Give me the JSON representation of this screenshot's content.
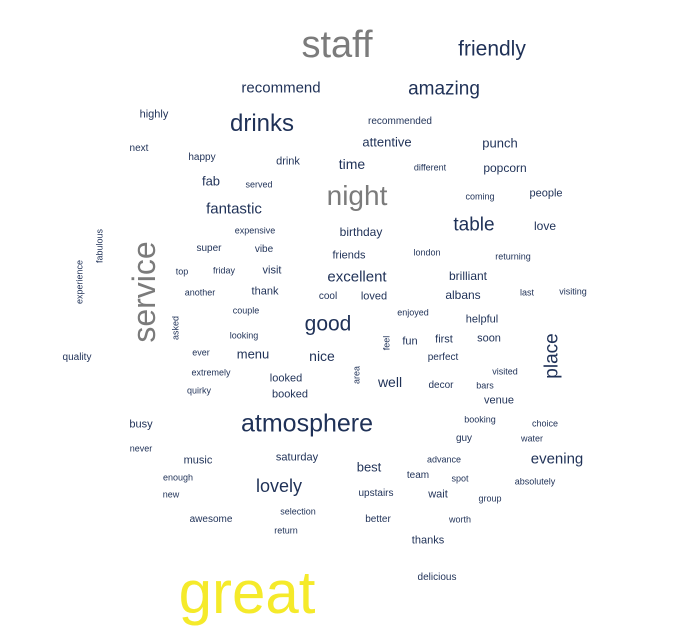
{
  "colors": {
    "navy": "#1f3157",
    "gray": "#7b7b7b",
    "yellow": "#f5ea2a",
    "background": "#ffffff"
  },
  "words": [
    {
      "text": "great",
      "color": "yellow"
    },
    {
      "text": "staff",
      "color": "gray"
    },
    {
      "text": "service",
      "color": "gray"
    },
    {
      "text": "night",
      "color": "gray"
    },
    {
      "text": "friendly",
      "color": "navy"
    },
    {
      "text": "drinks",
      "color": "navy"
    },
    {
      "text": "atmosphere",
      "color": "navy"
    },
    {
      "text": "amazing",
      "color": "navy"
    },
    {
      "text": "recommend",
      "color": "navy"
    },
    {
      "text": "good",
      "color": "navy"
    },
    {
      "text": "table",
      "color": "navy"
    },
    {
      "text": "place",
      "color": "navy"
    },
    {
      "text": "lovely",
      "color": "navy"
    },
    {
      "text": "evening",
      "color": "navy"
    },
    {
      "text": "excellent",
      "color": "navy"
    },
    {
      "text": "fantastic",
      "color": "navy"
    },
    {
      "text": "attentive",
      "color": "navy"
    },
    {
      "text": "punch",
      "color": "navy"
    },
    {
      "text": "popcorn",
      "color": "navy"
    },
    {
      "text": "time",
      "color": "navy"
    },
    {
      "text": "fab",
      "color": "navy"
    },
    {
      "text": "nice",
      "color": "navy"
    },
    {
      "text": "menu",
      "color": "navy"
    },
    {
      "text": "well",
      "color": "navy"
    },
    {
      "text": "best",
      "color": "navy"
    },
    {
      "text": "birthday",
      "color": "navy"
    },
    {
      "text": "brilliant",
      "color": "navy"
    },
    {
      "text": "albans",
      "color": "navy"
    },
    {
      "text": "love",
      "color": "navy"
    },
    {
      "text": "people",
      "color": "navy"
    },
    {
      "text": "highly",
      "color": "navy"
    },
    {
      "text": "recommended",
      "color": "navy"
    },
    {
      "text": "drink",
      "color": "navy"
    },
    {
      "text": "happy",
      "color": "navy"
    },
    {
      "text": "next",
      "color": "navy"
    },
    {
      "text": "served",
      "color": "navy"
    },
    {
      "text": "different",
      "color": "navy"
    },
    {
      "text": "coming",
      "color": "navy"
    },
    {
      "text": "expensive",
      "color": "navy"
    },
    {
      "text": "fabulous",
      "color": "navy"
    },
    {
      "text": "super",
      "color": "navy"
    },
    {
      "text": "vibe",
      "color": "navy"
    },
    {
      "text": "friends",
      "color": "navy"
    },
    {
      "text": "london",
      "color": "navy"
    },
    {
      "text": "returning",
      "color": "navy"
    },
    {
      "text": "experience",
      "color": "navy"
    },
    {
      "text": "top",
      "color": "navy"
    },
    {
      "text": "friday",
      "color": "navy"
    },
    {
      "text": "visit",
      "color": "navy"
    },
    {
      "text": "another",
      "color": "navy"
    },
    {
      "text": "thank",
      "color": "navy"
    },
    {
      "text": "cool",
      "color": "navy"
    },
    {
      "text": "loved",
      "color": "navy"
    },
    {
      "text": "last",
      "color": "navy"
    },
    {
      "text": "visiting",
      "color": "navy"
    },
    {
      "text": "couple",
      "color": "navy"
    },
    {
      "text": "enjoyed",
      "color": "navy"
    },
    {
      "text": "helpful",
      "color": "navy"
    },
    {
      "text": "asked",
      "color": "navy"
    },
    {
      "text": "looking",
      "color": "navy"
    },
    {
      "text": "feel",
      "color": "navy"
    },
    {
      "text": "fun",
      "color": "navy"
    },
    {
      "text": "first",
      "color": "navy"
    },
    {
      "text": "soon",
      "color": "navy"
    },
    {
      "text": "quality",
      "color": "navy"
    },
    {
      "text": "ever",
      "color": "navy"
    },
    {
      "text": "perfect",
      "color": "navy"
    },
    {
      "text": "extremely",
      "color": "navy"
    },
    {
      "text": "looked",
      "color": "navy"
    },
    {
      "text": "area",
      "color": "navy"
    },
    {
      "text": "visited",
      "color": "navy"
    },
    {
      "text": "quirky",
      "color": "navy"
    },
    {
      "text": "booked",
      "color": "navy"
    },
    {
      "text": "decor",
      "color": "navy"
    },
    {
      "text": "bars",
      "color": "navy"
    },
    {
      "text": "venue",
      "color": "navy"
    },
    {
      "text": "busy",
      "color": "navy"
    },
    {
      "text": "booking",
      "color": "navy"
    },
    {
      "text": "choice",
      "color": "navy"
    },
    {
      "text": "guy",
      "color": "navy"
    },
    {
      "text": "water",
      "color": "navy"
    },
    {
      "text": "never",
      "color": "navy"
    },
    {
      "text": "music",
      "color": "navy"
    },
    {
      "text": "saturday",
      "color": "navy"
    },
    {
      "text": "advance",
      "color": "navy"
    },
    {
      "text": "enough",
      "color": "navy"
    },
    {
      "text": "team",
      "color": "navy"
    },
    {
      "text": "spot",
      "color": "navy"
    },
    {
      "text": "absolutely",
      "color": "navy"
    },
    {
      "text": "new",
      "color": "navy"
    },
    {
      "text": "upstairs",
      "color": "navy"
    },
    {
      "text": "wait",
      "color": "navy"
    },
    {
      "text": "group",
      "color": "navy"
    },
    {
      "text": "selection",
      "color": "navy"
    },
    {
      "text": "awesome",
      "color": "navy"
    },
    {
      "text": "better",
      "color": "navy"
    },
    {
      "text": "worth",
      "color": "navy"
    },
    {
      "text": "return",
      "color": "navy"
    },
    {
      "text": "thanks",
      "color": "navy"
    },
    {
      "text": "delicious",
      "color": "navy"
    }
  ]
}
